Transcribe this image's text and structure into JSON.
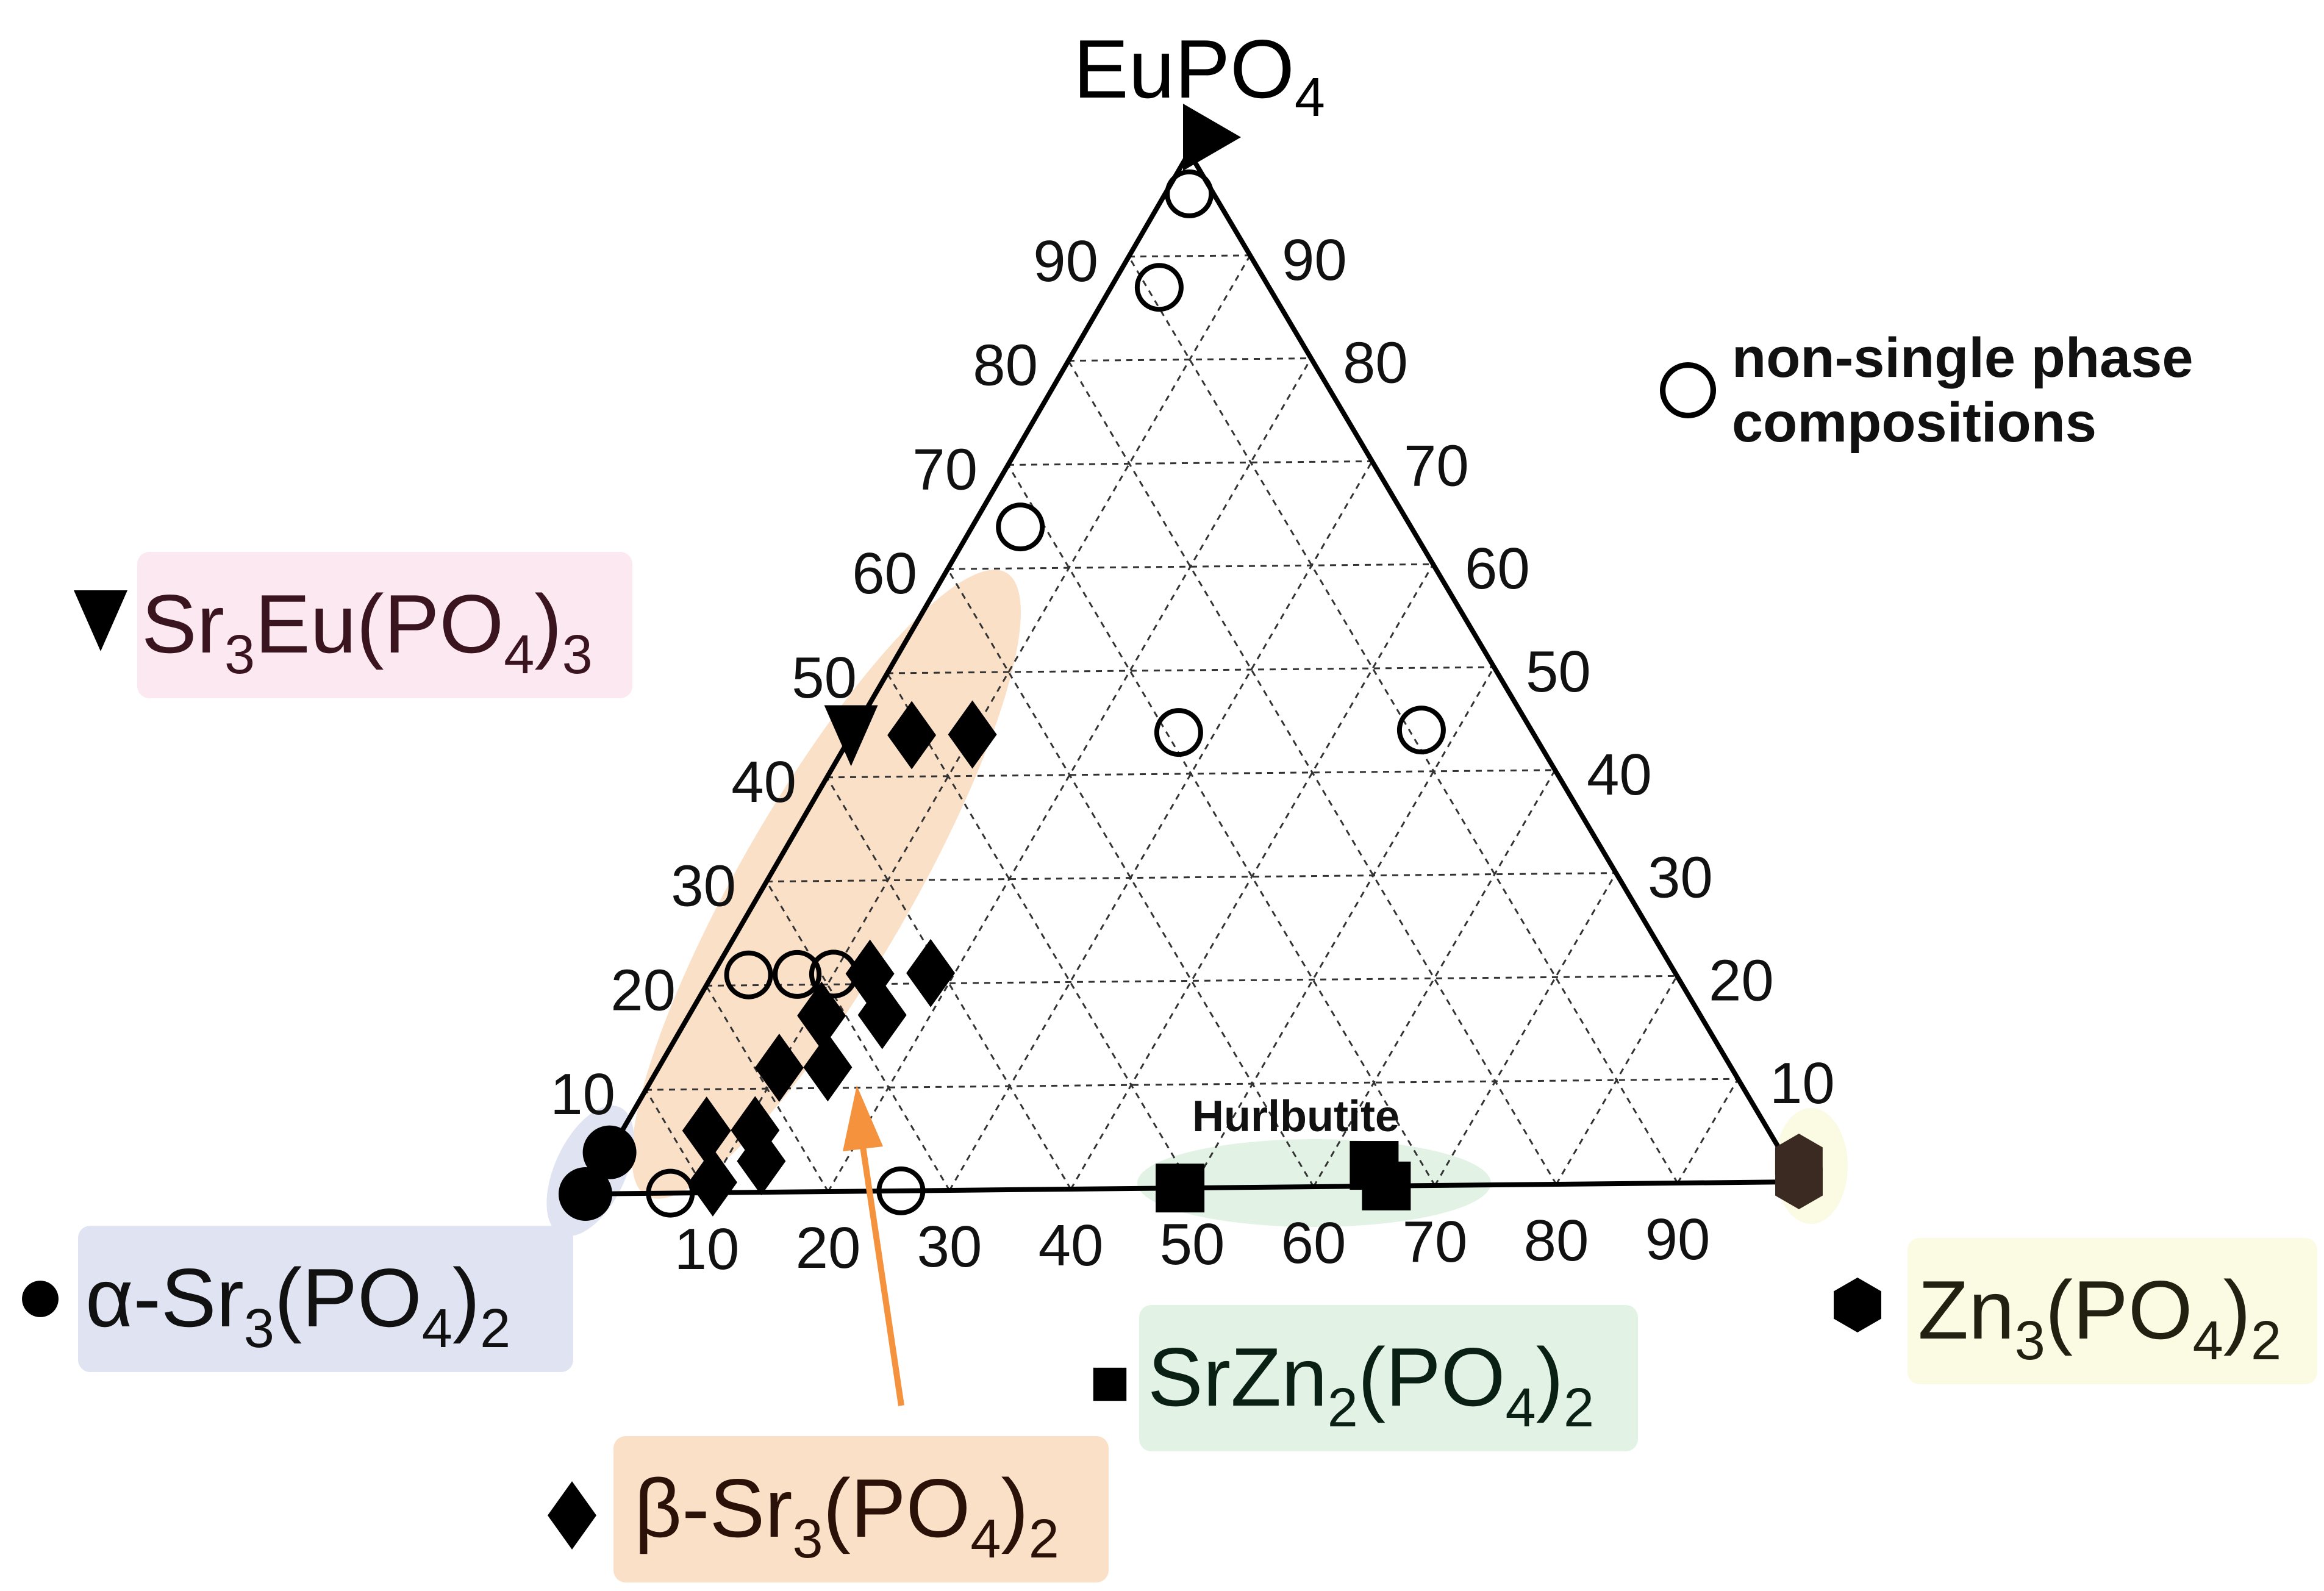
{
  "chart_data": {
    "type": "scatter",
    "subtype": "ternary",
    "title": "",
    "components": {
      "top": "EuPO4",
      "left": "Sr3(PO4)2",
      "right": "Zn3(PO4)2"
    },
    "apex_label": {
      "main": "EuPO",
      "sub": "4"
    },
    "left_axis_ticks": [
      "10",
      "20",
      "30",
      "40",
      "50",
      "60",
      "70",
      "80",
      "90"
    ],
    "right_axis_ticks": [
      "90",
      "80",
      "70",
      "60",
      "50",
      "40",
      "30",
      "20",
      "10"
    ],
    "bottom_axis_ticks": [
      "10",
      "20",
      "30",
      "40",
      "50",
      "60",
      "70",
      "80",
      "90"
    ],
    "grid": true,
    "legend_placement": "outside, around the triangle",
    "note": {
      "line1": "non-single phase",
      "line2": "compositions"
    },
    "annotation": "Hurlbutite",
    "series": [
      {
        "name": "non-single phase compositions",
        "marker": "open-circle",
        "points": [
          {
            "eu": 96,
            "zn": 2
          },
          {
            "eu": 87,
            "zn": 4
          },
          {
            "eu": 64,
            "zn": 4
          },
          {
            "eu": 44,
            "zn": 27
          },
          {
            "eu": 44,
            "zn": 47
          },
          {
            "eu": 21,
            "zn": 3
          },
          {
            "eu": 21,
            "zn": 7
          },
          {
            "eu": 21,
            "zn": 10
          },
          {
            "eu": 0,
            "zn": 7
          },
          {
            "eu": 0,
            "zn": 26
          }
        ]
      },
      {
        "name": "Sr3Eu(PO4)3",
        "marker": "down-triangle",
        "points": [
          {
            "eu": 44,
            "zn": 0
          }
        ]
      },
      {
        "name": "β-Sr3(PO4)2",
        "marker": "diamond",
        "points": [
          {
            "eu": 44,
            "zn": 5
          },
          {
            "eu": 44,
            "zn": 10
          },
          {
            "eu": 21,
            "zn": 13
          },
          {
            "eu": 21,
            "zn": 18
          },
          {
            "eu": 17,
            "zn": 11
          },
          {
            "eu": 17,
            "zn": 16
          },
          {
            "eu": 12,
            "zn": 10
          },
          {
            "eu": 12,
            "zn": 14
          },
          {
            "eu": 6,
            "zn": 7
          },
          {
            "eu": 6,
            "zn": 11
          },
          {
            "eu": 3,
            "zn": 13
          },
          {
            "eu": 1,
            "zn": 10
          }
        ]
      },
      {
        "name": "α-Sr3(PO4)2",
        "marker": "filled-circle",
        "points": [
          {
            "eu": 4,
            "zn": 0
          },
          {
            "eu": 0,
            "zn": 0
          }
        ]
      },
      {
        "name": "SrZn2(PO4)2",
        "marker": "filled-square",
        "points": [
          {
            "eu": 0,
            "zn": 49
          },
          {
            "eu": 2,
            "zn": 64
          },
          {
            "eu": 0,
            "zn": 66
          }
        ]
      },
      {
        "name": "Zn3(PO4)2",
        "marker": "filled-hexagon",
        "points": [
          {
            "eu": 2,
            "zn": 99
          },
          {
            "eu": 0,
            "zn": 100
          }
        ]
      }
    ],
    "regions": [
      {
        "name": "β-Sr3(PO4)2",
        "color": "#fbe0c8"
      },
      {
        "name": "α-Sr3(PO4)2",
        "color": "#dfe3f2"
      },
      {
        "name": "SrZn2(PO4)2",
        "color": "#e2f3e6"
      },
      {
        "name": "Zn3(PO4)2",
        "color": "#fbfae3"
      },
      {
        "name": "Sr3Eu(PO4)3",
        "color": "#fce8f0"
      }
    ],
    "legend": [
      {
        "key": "sr3eu",
        "marker": "down-triangle",
        "parts": [
          [
            "Sr",
            ""
          ],
          [
            "3",
            "sub"
          ],
          [
            "Eu(PO",
            ""
          ],
          [
            "4",
            "sub"
          ],
          [
            ")",
            ""
          ],
          [
            "3",
            "sub"
          ]
        ],
        "bg": "#fce8f0",
        "fg": "#3a1520"
      },
      {
        "key": "alpha",
        "marker": "filled-circle",
        "parts": [
          [
            "α-Sr",
            ""
          ],
          [
            "3",
            "sub"
          ],
          [
            "(PO",
            ""
          ],
          [
            "4",
            "sub"
          ],
          [
            ")",
            ""
          ],
          [
            "2",
            "sub"
          ]
        ],
        "bg": "#dfe3f2",
        "fg": "#111111"
      },
      {
        "key": "beta",
        "marker": "diamond",
        "parts": [
          [
            "β-Sr",
            ""
          ],
          [
            "3",
            "sub"
          ],
          [
            "(PO",
            ""
          ],
          [
            "4",
            "sub"
          ],
          [
            ")",
            ""
          ],
          [
            "2",
            "sub"
          ]
        ],
        "bg": "#fbe0c8",
        "fg": "#2a1208"
      },
      {
        "key": "srzn",
        "marker": "filled-square",
        "parts": [
          [
            "SrZn",
            ""
          ],
          [
            "2",
            "sub"
          ],
          [
            "(PO",
            ""
          ],
          [
            "4",
            "sub"
          ],
          [
            ")",
            ""
          ],
          [
            "2",
            "sub"
          ]
        ],
        "bg": "#e2f3e6",
        "fg": "#0b2014"
      },
      {
        "key": "zn",
        "marker": "filled-hexagon",
        "parts": [
          [
            "Zn",
            ""
          ],
          [
            "3",
            "sub"
          ],
          [
            "(PO",
            ""
          ],
          [
            "4",
            "sub"
          ],
          [
            ")",
            ""
          ],
          [
            "2",
            "sub"
          ]
        ],
        "bg": "#fbfae3",
        "fg": "#222010"
      }
    ],
    "colors": {
      "beta_region": "#fbe0c8",
      "arrow": "#f5923e",
      "markers": "#000000",
      "zn_marker": "#3a2a22"
    }
  }
}
